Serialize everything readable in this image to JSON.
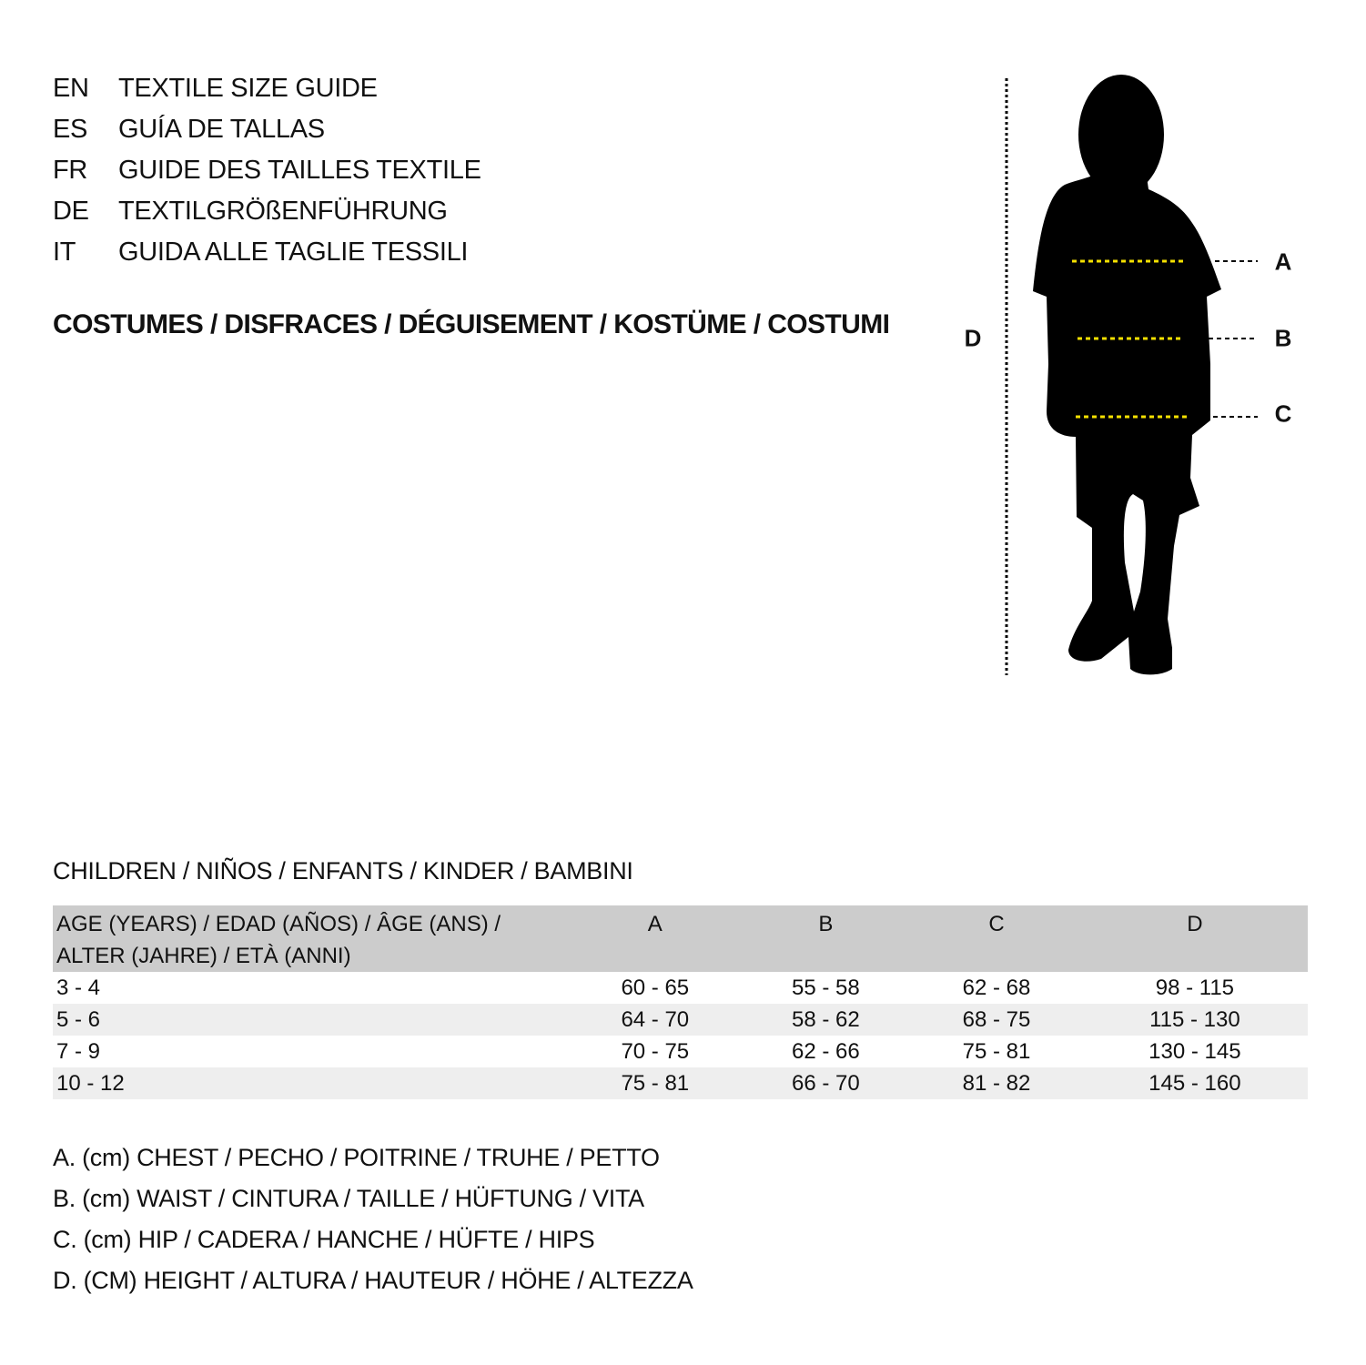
{
  "header": {
    "languages": [
      {
        "code": "EN",
        "text": "TEXTILE SIZE GUIDE"
      },
      {
        "code": "ES",
        "text": "GUÍA DE TALLAS"
      },
      {
        "code": "FR",
        "text": "GUIDE DES TAILLES TEXTILE"
      },
      {
        "code": "DE",
        "text": "TEXTILGRÖßENFÜHRUNG"
      },
      {
        "code": "IT",
        "text": "GUIDA ALLE TAGLIE TESSILI"
      }
    ],
    "category": "COSTUMES / DISFRACES / DÉGUISEMENT / KOSTÜME / COSTUMI"
  },
  "figure": {
    "labels": {
      "A": "A",
      "B": "B",
      "C": "C",
      "D": "D"
    },
    "colors": {
      "silhouette": "#000000",
      "measure_line": "#f5e000"
    }
  },
  "table": {
    "section_title": "CHILDREN / NIÑOS / ENFANTS / KINDER / BAMBINI",
    "headers": {
      "age_line1": "AGE (YEARS) / EDAD (AÑOS) / ÂGE (ANS) /",
      "age_line2": "ALTER (JAHRE) / ETÀ (ANNI)",
      "A": "A",
      "B": "B",
      "C": "C",
      "D": "D"
    },
    "rows": [
      {
        "age": "3 - 4",
        "A": "60 - 65",
        "B": "55 - 58",
        "C": "62 - 68",
        "D": "98 - 115"
      },
      {
        "age": "5 - 6",
        "A": "64 - 70",
        "B": "58 - 62",
        "C": "68 - 75",
        "D": "115 - 130"
      },
      {
        "age": "7 - 9",
        "A": "70 - 75",
        "B": "62 - 66",
        "C": "75 - 81",
        "D": "130 - 145"
      },
      {
        "age": "10 - 12",
        "A": "75 - 81",
        "B": "66 - 70",
        "C": "81 - 82",
        "D": "145 - 160"
      }
    ]
  },
  "legend": [
    "A. (cm) CHEST / PECHO / POITRINE / TRUHE / PETTO",
    "B. (cm) WAIST / CINTURA / TAILLE / HÜFTUNG / VITA",
    "C. (cm) HIP / CADERA / HANCHE / HÜFTE / HIPS",
    "D. (CM) HEIGHT / ALTURA / HAUTEUR / HÖHE / ALTEZZA"
  ]
}
